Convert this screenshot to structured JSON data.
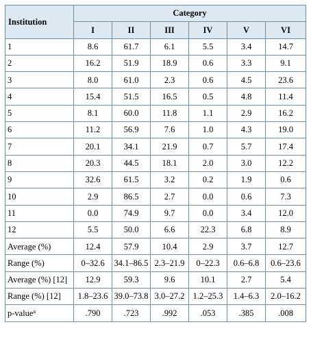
{
  "table": {
    "header_institution": "Institution",
    "header_category": "Category",
    "columns": [
      "I",
      "II",
      "III",
      "IV",
      "V",
      "VI"
    ],
    "rows": [
      {
        "label": "1",
        "values": [
          "8.6",
          "61.7",
          "6.1",
          "5.5",
          "3.4",
          "14.7"
        ]
      },
      {
        "label": "2",
        "values": [
          "16.2",
          "51.9",
          "18.9",
          "0.6",
          "3.3",
          "9.1"
        ]
      },
      {
        "label": "3",
        "values": [
          "8.0",
          "61.0",
          "2.3",
          "0.6",
          "4.5",
          "23.6"
        ]
      },
      {
        "label": "4",
        "values": [
          "15.4",
          "51.5",
          "16.5",
          "0.5",
          "4.8",
          "11.4"
        ]
      },
      {
        "label": "5",
        "values": [
          "8.1",
          "60.0",
          "11.8",
          "1.1",
          "2.9",
          "16.2"
        ]
      },
      {
        "label": "6",
        "values": [
          "11.2",
          "56.9",
          "7.6",
          "1.0",
          "4.3",
          "19.0"
        ]
      },
      {
        "label": "7",
        "values": [
          "20.1",
          "34.1",
          "21.9",
          "0.7",
          "5.7",
          "17.4"
        ]
      },
      {
        "label": "8",
        "values": [
          "20.3",
          "44.5",
          "18.1",
          "2.0",
          "3.0",
          "12.2"
        ]
      },
      {
        "label": "9",
        "values": [
          "32.6",
          "61.5",
          "3.2",
          "0.2",
          "1.9",
          "0.6"
        ]
      },
      {
        "label": "10",
        "values": [
          "2.9",
          "86.5",
          "2.7",
          "0.0",
          "0.6",
          "7.3"
        ]
      },
      {
        "label": "11",
        "values": [
          "0.0",
          "74.9",
          "9.7",
          "0.0",
          "3.4",
          "12.0"
        ]
      },
      {
        "label": "12",
        "values": [
          "5.5",
          "50.0",
          "6.6",
          "22.3",
          "6.8",
          "8.9"
        ]
      },
      {
        "label": "Average (%)",
        "values": [
          "12.4",
          "57.9",
          "10.4",
          "2.9",
          "3.7",
          "12.7"
        ]
      },
      {
        "label": "Range (%)",
        "values": [
          "0–32.6",
          "34.1–86.5",
          "2.3–21.9",
          "0–22.3",
          "0.6–6.8",
          "0.6–23.6"
        ]
      },
      {
        "label": "Average (%) [12]",
        "values": [
          "12.9",
          "59.3",
          "9.6",
          "10.1",
          "2.7",
          "5.4"
        ]
      },
      {
        "label": "Range (%) [12]",
        "values": [
          "1.8–23.6",
          "39.0–73.8",
          "3.0–27.2",
          "1.2–25.3",
          "1.4–6.3",
          "2.0–16.2"
        ]
      },
      {
        "label": "p-value",
        "label_sup": "a",
        "values": [
          ".790",
          ".723",
          ".992",
          ".053",
          ".385",
          ".008"
        ]
      }
    ]
  }
}
